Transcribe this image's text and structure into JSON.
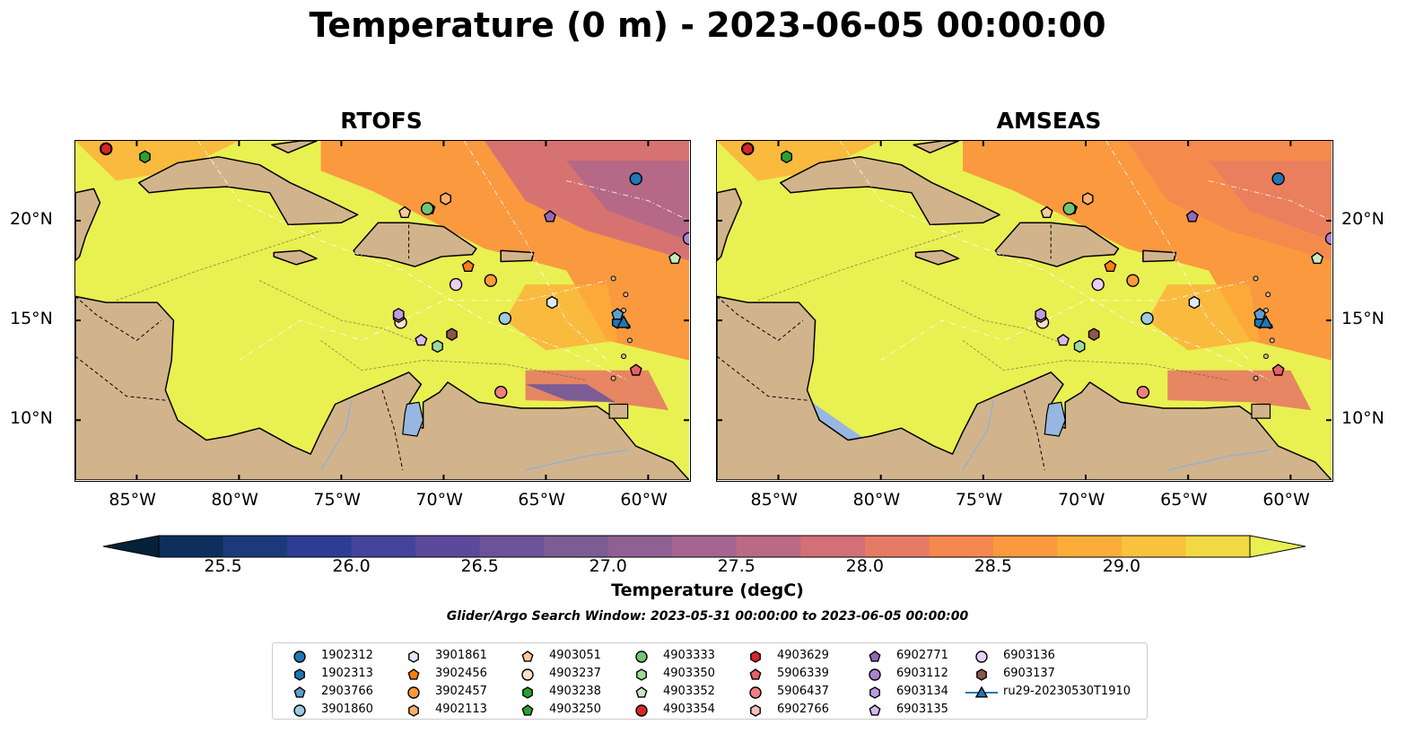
{
  "title": "Temperature (0 m) - 2023-06-05 00:00:00",
  "panels": [
    {
      "title": "RTOFS",
      "variant": "rtofs"
    },
    {
      "title": "AMSEAS",
      "variant": "amseas"
    }
  ],
  "axes": {
    "lon_ticks": [
      "85°W",
      "80°W",
      "75°W",
      "70°W",
      "65°W",
      "60°W"
    ],
    "lon_values": [
      -85,
      -80,
      -75,
      -70,
      -65,
      -60
    ],
    "lat_ticks": [
      "20°N",
      "15°N",
      "10°N"
    ],
    "lat_values": [
      20,
      15,
      10
    ],
    "lon_range": [
      -88,
      -58
    ],
    "lat_range": [
      7,
      24
    ]
  },
  "colorbar": {
    "label": "Temperature (degC)",
    "ticks": [
      "25.5",
      "26.0",
      "26.5",
      "27.0",
      "27.5",
      "28.0",
      "28.5",
      "29.0"
    ],
    "tick_values": [
      25.5,
      26.0,
      26.5,
      27.0,
      27.5,
      28.0,
      28.5,
      29.0
    ],
    "range": [
      25.5,
      29.25
    ],
    "colors": [
      "#04223a",
      "#0e2f5c",
      "#1c3a7a",
      "#2c3d93",
      "#46439c",
      "#5a4a9a",
      "#6b5397",
      "#7c5c94",
      "#8f6092",
      "#a66590",
      "#bb6a86",
      "#d26f77",
      "#e67a64",
      "#f4884f",
      "#fb993f",
      "#fcad39",
      "#f8c23d",
      "#f1d944",
      "#e9f051"
    ],
    "extend": "both"
  },
  "search_window": "Glider/Argo Search Window: 2023-05-31 00:00:00 to 2023-06-05 00:00:00",
  "legend": [
    {
      "label": "1902312",
      "marker": "circle",
      "color": "#1f77b4"
    },
    {
      "label": "1902313",
      "marker": "hexagon",
      "color": "#1f77b4"
    },
    {
      "label": "2903766",
      "marker": "pentagon",
      "color": "#5b9fd0"
    },
    {
      "label": "3901860",
      "marker": "circle",
      "color": "#9ecae1"
    },
    {
      "label": "3901861",
      "marker": "hexagon",
      "color": "#deebf7"
    },
    {
      "label": "3902456",
      "marker": "pentagon",
      "color": "#ff7f0e"
    },
    {
      "label": "3902457",
      "marker": "circle",
      "color": "#ff9a3c"
    },
    {
      "label": "4902113",
      "marker": "hexagon",
      "color": "#fdae6b"
    },
    {
      "label": "4903051",
      "marker": "pentagon",
      "color": "#fdc99a"
    },
    {
      "label": "4903237",
      "marker": "circle",
      "color": "#fde0c5"
    },
    {
      "label": "4903238",
      "marker": "hexagon",
      "color": "#2ca02c"
    },
    {
      "label": "4903250",
      "marker": "pentagon",
      "color": "#2ca02c"
    },
    {
      "label": "4903333",
      "marker": "circle",
      "color": "#74c476"
    },
    {
      "label": "4903350",
      "marker": "hexagon",
      "color": "#a1d99b"
    },
    {
      "label": "4903352",
      "marker": "pentagon",
      "color": "#c7e9c0"
    },
    {
      "label": "4903354",
      "marker": "circle",
      "color": "#d62728"
    },
    {
      "label": "4903629",
      "marker": "hexagon",
      "color": "#d62728"
    },
    {
      "label": "5906339",
      "marker": "pentagon",
      "color": "#e7606a"
    },
    {
      "label": "5906437",
      "marker": "circle",
      "color": "#f08080"
    },
    {
      "label": "6902766",
      "marker": "hexagon",
      "color": "#fbc0bc"
    },
    {
      "label": "6902771",
      "marker": "pentagon",
      "color": "#9467bd"
    },
    {
      "label": "6903112",
      "marker": "circle",
      "color": "#a982d0"
    },
    {
      "label": "6903134",
      "marker": "hexagon",
      "color": "#bc9ce0"
    },
    {
      "label": "6903135",
      "marker": "pentagon",
      "color": "#d4b9ee"
    },
    {
      "label": "6903136",
      "marker": "circle",
      "color": "#e7cff7"
    },
    {
      "label": "6903137",
      "marker": "hexagon",
      "color": "#8c564b"
    },
    {
      "label": "ru29-20230530T1910",
      "marker": "triangle-line",
      "color": "#1f77b4"
    }
  ],
  "floats": [
    {
      "id": "1902312",
      "lon": -60.6,
      "lat": 22.1
    },
    {
      "id": "1902313",
      "lon": -61.5,
      "lat": 14.9
    },
    {
      "id": "2903766",
      "lon": -61.5,
      "lat": 15.3
    },
    {
      "id": "3901860",
      "lon": -67.0,
      "lat": 15.1
    },
    {
      "id": "3901861",
      "lon": -64.7,
      "lat": 15.9
    },
    {
      "id": "3902456",
      "lon": -68.8,
      "lat": 17.7
    },
    {
      "id": "3902457",
      "lon": -67.7,
      "lat": 17.0
    },
    {
      "id": "4902113",
      "lon": -69.9,
      "lat": 21.1
    },
    {
      "id": "4903051",
      "lon": -71.9,
      "lat": 20.4
    },
    {
      "id": "4903237",
      "lon": -72.1,
      "lat": 14.9
    },
    {
      "id": "4903238",
      "lon": -84.6,
      "lat": 23.2
    },
    {
      "id": "4903250",
      "lon": -70.7,
      "lat": 20.6
    },
    {
      "id": "4903333",
      "lon": -70.8,
      "lat": 20.6
    },
    {
      "id": "4903350",
      "lon": -70.3,
      "lat": 13.7
    },
    {
      "id": "4903352",
      "lon": -58.7,
      "lat": 18.1
    },
    {
      "id": "4903354",
      "lon": -86.5,
      "lat": 23.6
    },
    {
      "id": "4903629",
      "lon": -86.5,
      "lat": 23.6
    },
    {
      "id": "5906339",
      "lon": -60.6,
      "lat": 12.5
    },
    {
      "id": "5906437",
      "lon": -67.2,
      "lat": 11.4
    },
    {
      "id": "6902766",
      "lon": -72.2,
      "lat": 15.2
    },
    {
      "id": "6902771",
      "lon": -64.8,
      "lat": 20.2
    },
    {
      "id": "6903112",
      "lon": -58.0,
      "lat": 19.1
    },
    {
      "id": "6903134",
      "lon": -72.2,
      "lat": 15.3
    },
    {
      "id": "6903135",
      "lon": -71.1,
      "lat": 14.0
    },
    {
      "id": "6903136",
      "lon": -69.4,
      "lat": 16.8
    },
    {
      "id": "6903137",
      "lon": -69.6,
      "lat": 14.3
    }
  ],
  "glider": {
    "id": "ru29-20230530T1910",
    "lon": -61.2,
    "lat": 14.9
  },
  "colors": {
    "land": "#d2b48c",
    "warm_water": "#e9f051",
    "lake": "#97b6e1",
    "coast": "#000000"
  }
}
